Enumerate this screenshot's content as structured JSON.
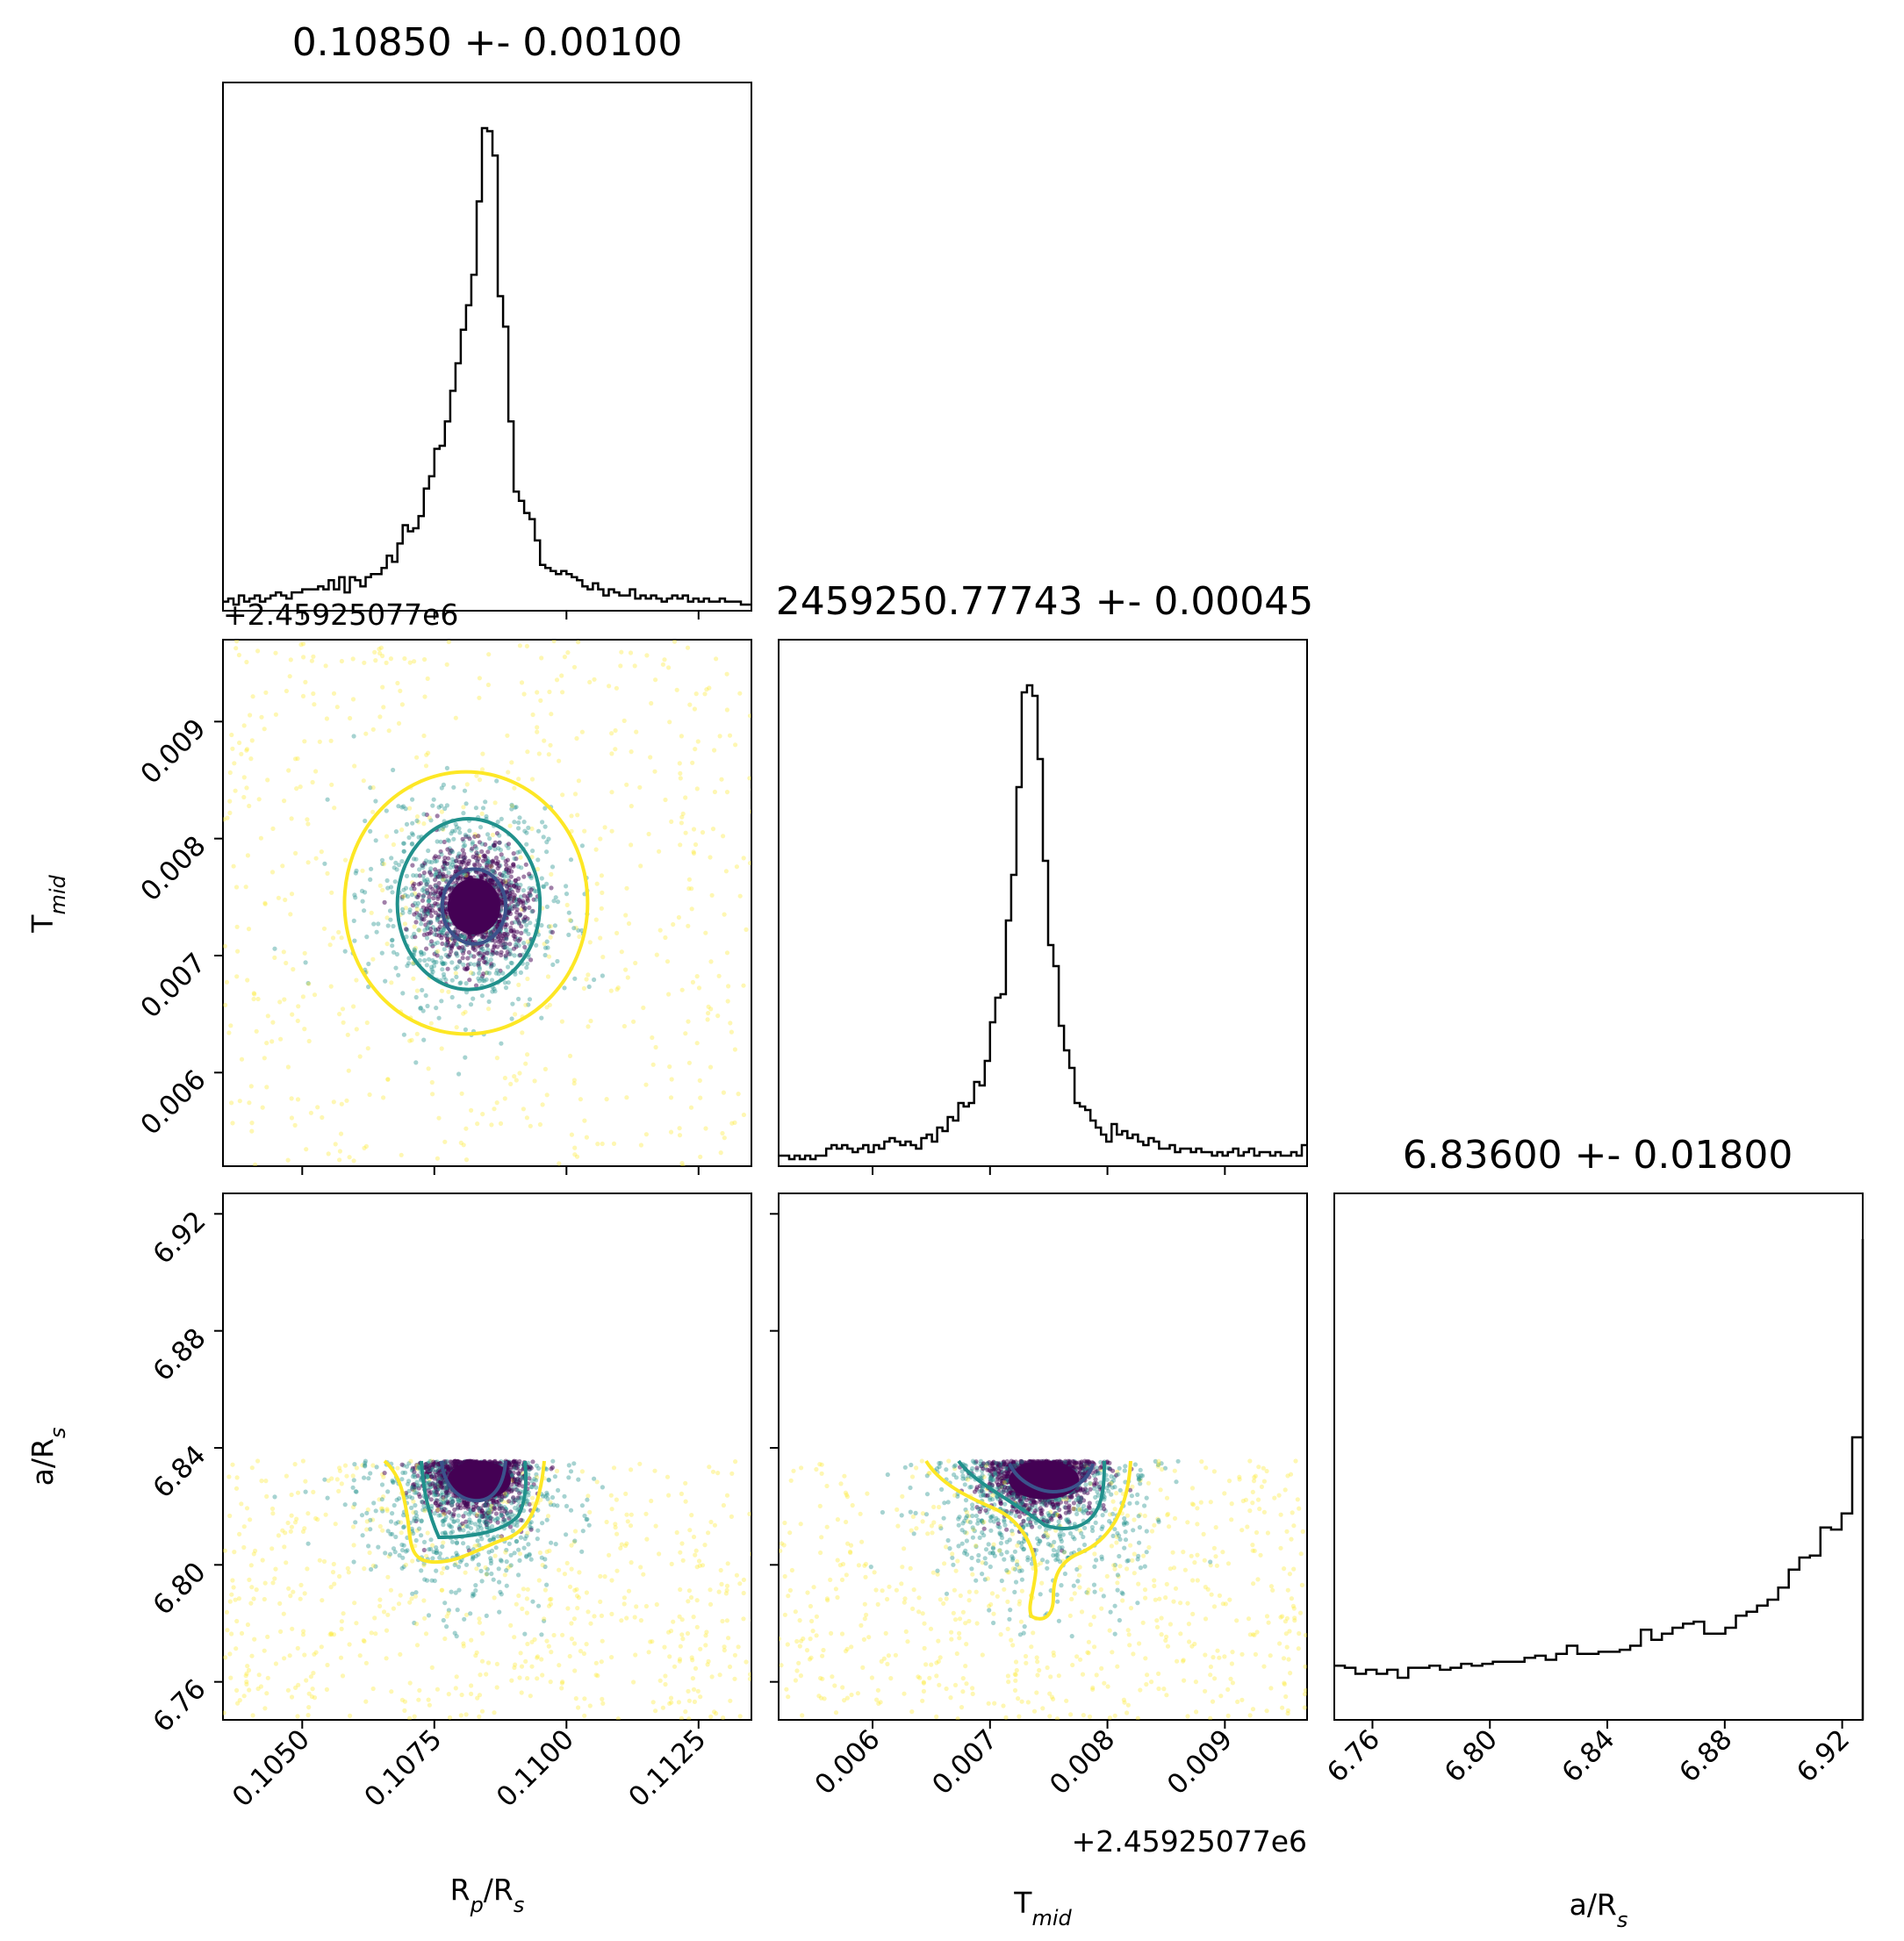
{
  "chart_data": {
    "type": "corner",
    "parameters": [
      "Rp/Rs",
      "Tmid",
      "a/Rs"
    ],
    "axis_labels": {
      "rp": {
        "base": "R",
        "sub": "p",
        "tail": "/R",
        "tail_sub": "s"
      },
      "tmid": {
        "base": "T",
        "sub": "mid"
      },
      "ars": {
        "base": "a/R",
        "sub": "s"
      }
    },
    "titles": {
      "rp": "0.10850 +- 0.00100",
      "tmid": "2459250.77743 +- 0.00045",
      "ars": "6.83600 +- 0.01800"
    },
    "offset_text": {
      "rp_tmid_row": "+2.45925077e6",
      "tmid_x": "+2.45925077e6"
    },
    "ranges": {
      "rp": [
        0.1035,
        0.1135
      ],
      "tmid": [
        0.0052,
        0.0097
      ],
      "ars": [
        6.747,
        6.927
      ]
    },
    "ticks": {
      "rp": [
        "0.1050",
        "0.1075",
        "0.1100",
        "0.1125"
      ],
      "tmid": [
        "0.006",
        "0.007",
        "0.008",
        "0.009"
      ],
      "ars": [
        "6.76",
        "6.80",
        "6.84",
        "6.88",
        "6.92"
      ]
    },
    "histograms": {
      "rp": {
        "edges_from": 0.1035,
        "edges_step": 0.0001,
        "counts": [
          3,
          4,
          2,
          5,
          3,
          4,
          5,
          3,
          4,
          5,
          6,
          5,
          4,
          6,
          6,
          7,
          7,
          7,
          8,
          7,
          10,
          7,
          11,
          6,
          11,
          10,
          8,
          11,
          12,
          12,
          14,
          18,
          16,
          22,
          28,
          26,
          27,
          31,
          40,
          44,
          53,
          54,
          62,
          72,
          81,
          92,
          100,
          110,
          134,
          158,
          157,
          149,
          103,
          93,
          62,
          39,
          36,
          32,
          30,
          23,
          15,
          14,
          13,
          12,
          13,
          12,
          11,
          10,
          8,
          7,
          9,
          7,
          5,
          7,
          6,
          5,
          5,
          7,
          4,
          5,
          4,
          5,
          4,
          3,
          4,
          5,
          4,
          5,
          3,
          4,
          3,
          4,
          3,
          3,
          4,
          3,
          3,
          3,
          2,
          2
        ],
        "scale_max": 158
      },
      "tmid": {
        "edges_from": 0.0052,
        "edges_step": 4.5e-05,
        "counts": [
          3,
          3,
          2,
          3,
          2,
          3,
          2,
          3,
          3,
          5,
          6,
          5,
          6,
          5,
          4,
          5,
          6,
          4,
          6,
          5,
          7,
          8,
          7,
          6,
          7,
          6,
          5,
          8,
          9,
          7,
          11,
          10,
          14,
          13,
          18,
          17,
          18,
          24,
          23,
          30,
          41,
          48,
          49,
          70,
          83,
          108,
          135,
          137,
          134,
          116,
          87,
          63,
          57,
          40,
          33,
          28,
          18,
          17,
          16,
          13,
          11,
          9,
          7,
          12,
          9,
          10,
          8,
          9,
          7,
          6,
          8,
          7,
          5,
          5,
          6,
          4,
          5,
          5,
          4,
          5,
          4,
          4,
          3,
          4,
          3,
          4,
          5,
          3,
          4,
          5,
          3,
          4,
          4,
          3,
          4,
          3,
          3,
          4,
          3,
          6
        ],
        "scale_max": 137
      },
      "ars": {
        "edges_from": 6.747,
        "edges_step": 0.0036,
        "counts": [
          27,
          26,
          23,
          25,
          23,
          25,
          21,
          26,
          26,
          27,
          25,
          26,
          28,
          27,
          28,
          29,
          29,
          29,
          31,
          32,
          30,
          33,
          37,
          33,
          33,
          34,
          34,
          35,
          37,
          45,
          40,
          43,
          46,
          48,
          49,
          43,
          43,
          46,
          52,
          54,
          57,
          60,
          66,
          75,
          81,
          82,
          96,
          95,
          103,
          141,
          145,
          237,
          240,
          74,
          0,
          0,
          0,
          0,
          0,
          0,
          0,
          0,
          0,
          0,
          0,
          0,
          0,
          0,
          0,
          0,
          0,
          0,
          0,
          0,
          0,
          0,
          0,
          0,
          0,
          0,
          0,
          0,
          0,
          0,
          0,
          0,
          0,
          0,
          0,
          0,
          0,
          0,
          0,
          0,
          0,
          0,
          0,
          0,
          0,
          0
        ],
        "scale_max": 240
      }
    },
    "scatter_colors": [
      "#440154",
      "#21918c",
      "#fde725"
    ],
    "contour_colors": [
      "#3b528b",
      "#21918c",
      "#fde725"
    ],
    "contours": {
      "rp_tmid": [
        {
          "color": "#3b528b",
          "cx": 0.10825,
          "cy": 0.00742,
          "rx": 0.0006,
          "ry": 0.00032
        },
        {
          "color": "#21918c",
          "cx": 0.10815,
          "cy": 0.00744,
          "rx": 0.00135,
          "ry": 0.00073
        },
        {
          "color": "#fde725",
          "cx": 0.1081,
          "cy": 0.00745,
          "rx": 0.0023,
          "ry": 0.00112
        }
      ]
    }
  }
}
